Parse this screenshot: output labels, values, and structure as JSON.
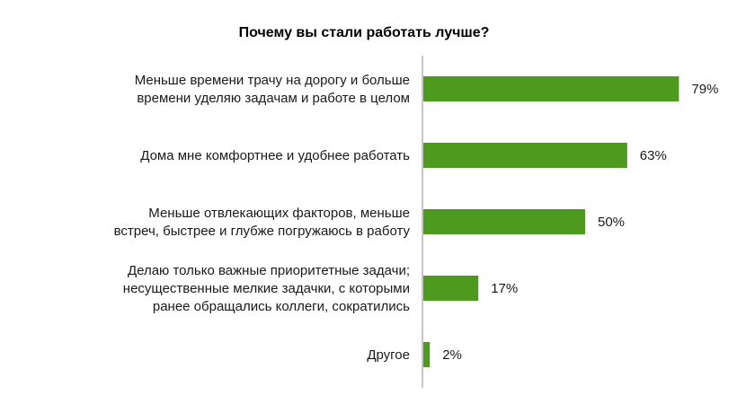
{
  "chart_data": {
    "type": "bar",
    "orientation": "horizontal",
    "title": "Почему вы стали работать лучше?",
    "categories": [
      [
        "Меньше времени трачу на дорогу и больше",
        "времени уделяю задачам и работе в целом"
      ],
      [
        "Дома мне комфортнее и удобнее работать"
      ],
      [
        "Меньше отвлекающих факторов, меньше",
        "встреч, быстрее и глубже погружаюсь в работу"
      ],
      [
        "Делаю только важные приоритетные задачи;",
        "несущественные мелкие задачки, с которыми",
        "ранее обращались коллеги, сократились"
      ],
      [
        "Другое"
      ]
    ],
    "values": [
      79,
      63,
      50,
      17,
      2
    ],
    "data_labels": [
      "79%",
      "63%",
      "50%",
      "17%",
      "2%"
    ],
    "value_unit": "%",
    "xlim": [
      0,
      100
    ],
    "grid": false,
    "legend": "none",
    "bar_color": "#4e9a1f",
    "axis_color": "#8c8c8c"
  }
}
